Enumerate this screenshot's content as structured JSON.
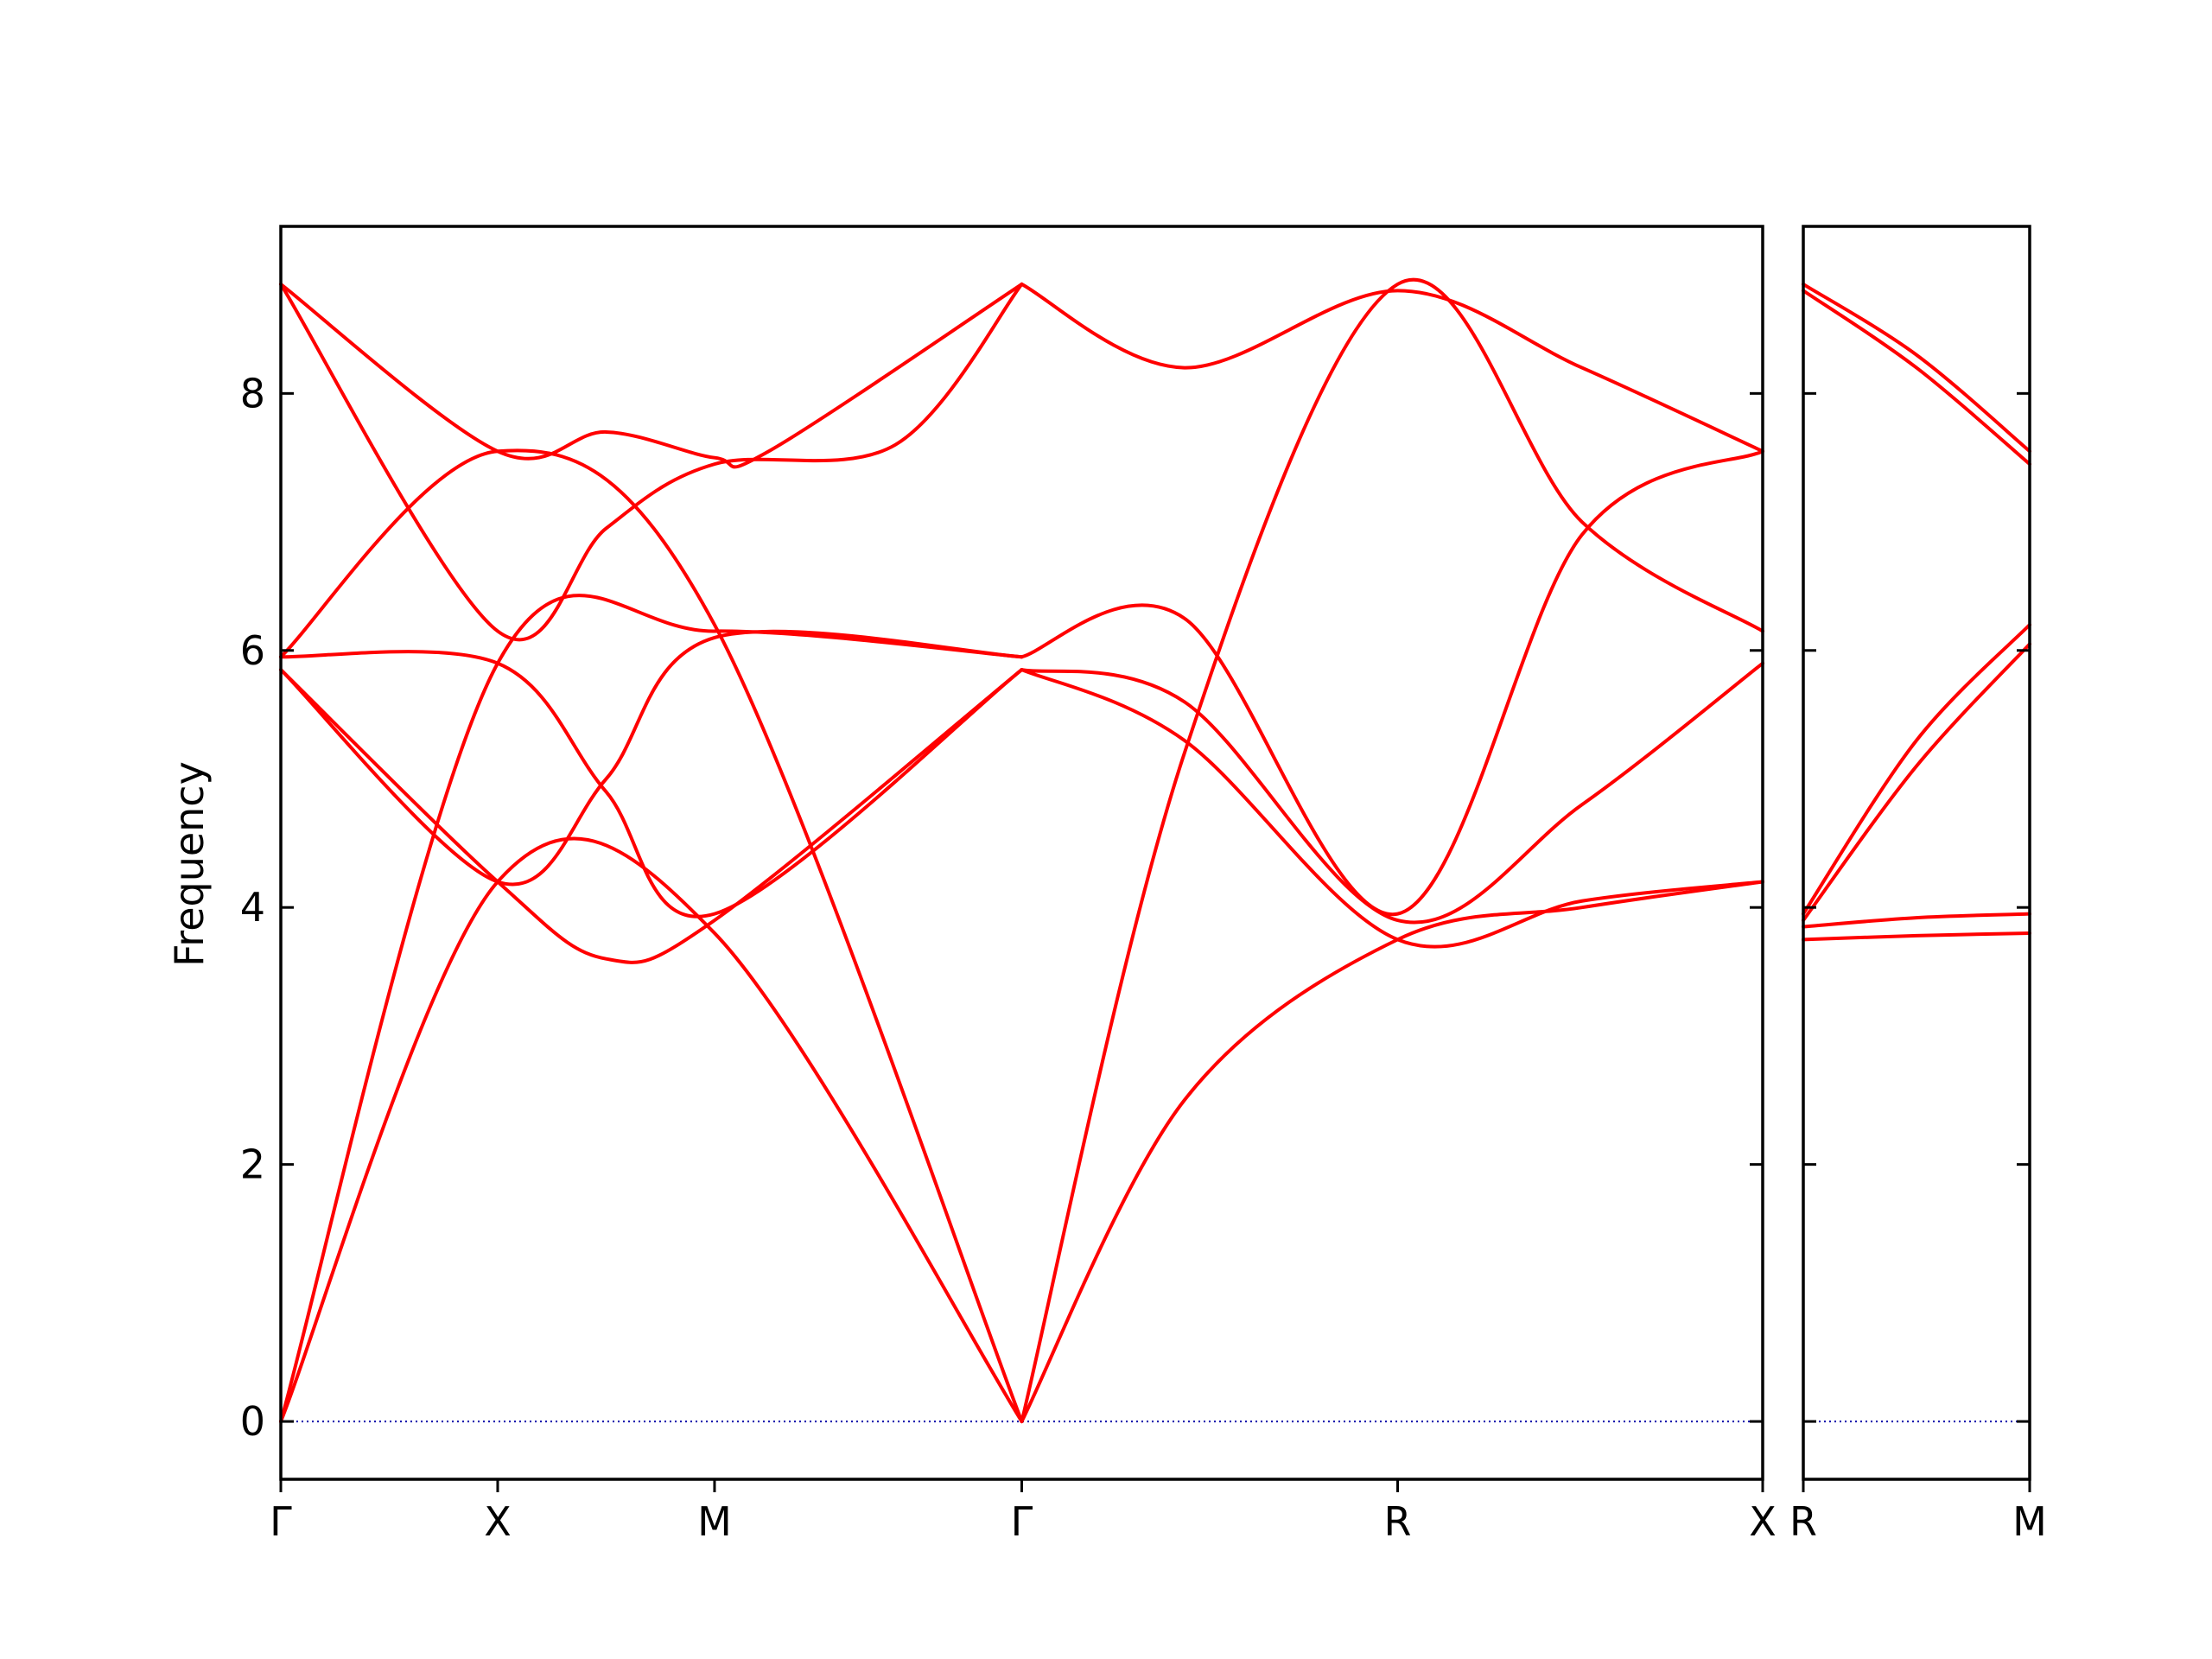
{
  "chart_data": {
    "type": "line",
    "title": "",
    "ylabel": "Frequency",
    "ylim": [
      -0.45,
      9.3
    ],
    "yticks": [
      0,
      2,
      4,
      6,
      8
    ],
    "line_color": "#ff0000",
    "zero_line_color": "#0000aa",
    "panels": [
      {
        "name": "main",
        "x_range": [
          0,
          4.1
        ],
        "xticks": [
          {
            "x": 0,
            "label": "Γ"
          },
          {
            "x": 0.6,
            "label": "X"
          },
          {
            "x": 1.2,
            "label": "M"
          },
          {
            "x": 2.05,
            "label": "Γ"
          },
          {
            "x": 3.09,
            "label": "R"
          },
          {
            "x": 4.1,
            "label": "X"
          }
        ],
        "series": [
          {
            "points": [
              [
                0,
                0
              ],
              [
                0.6,
                4.2
              ],
              [
                1.2,
                3.8
              ],
              [
                2.05,
                0
              ]
            ]
          },
          {
            "points": [
              [
                0,
                0
              ],
              [
                0.6,
                5.9
              ],
              [
                1.2,
                6.15
              ],
              [
                2.05,
                5.95
              ]
            ]
          },
          {
            "points": [
              [
                0,
                5.85
              ],
              [
                0.6,
                4.2
              ],
              [
                0.9,
                3.6
              ],
              [
                1.2,
                3.9
              ],
              [
                2.05,
                5.85
              ]
            ]
          },
          {
            "points": [
              [
                0,
                5.85
              ],
              [
                0.6,
                4.2
              ],
              [
                0.9,
                5.0
              ],
              [
                1.2,
                6.1
              ],
              [
                2.05,
                5.95
              ]
            ]
          },
          {
            "points": [
              [
                0,
                5.95
              ],
              [
                0.6,
                7.55
              ],
              [
                1.2,
                6.2
              ],
              [
                2.05,
                0
              ]
            ]
          },
          {
            "points": [
              [
                0,
                5.95
              ],
              [
                0.6,
                5.9
              ],
              [
                0.9,
                4.9
              ],
              [
                1.2,
                3.95
              ],
              [
                2.05,
                5.85
              ]
            ]
          },
          {
            "points": [
              [
                0,
                8.85
              ],
              [
                0.6,
                6.15
              ],
              [
                0.9,
                6.95
              ],
              [
                1.2,
                7.45
              ],
              [
                1.7,
                7.6
              ],
              [
                2.05,
                8.85
              ]
            ]
          },
          {
            "points": [
              [
                0,
                8.85
              ],
              [
                0.6,
                7.55
              ],
              [
                0.9,
                7.7
              ],
              [
                1.2,
                7.5
              ],
              [
                1.35,
                7.55
              ],
              [
                2.05,
                8.85
              ]
            ]
          },
          {
            "points": [
              [
                2.05,
                0
              ],
              [
                2.5,
                2.5
              ],
              [
                3.09,
                3.75
              ],
              [
                3.6,
                4.0
              ],
              [
                4.1,
                4.2
              ]
            ]
          },
          {
            "points": [
              [
                2.05,
                0
              ],
              [
                2.5,
                5.2
              ],
              [
                3.09,
                8.85
              ],
              [
                3.6,
                7.0
              ],
              [
                4.1,
                6.15
              ]
            ]
          },
          {
            "points": [
              [
                2.05,
                5.85
              ],
              [
                2.5,
                5.3
              ],
              [
                3.09,
                3.75
              ],
              [
                3.6,
                4.05
              ],
              [
                4.1,
                4.2
              ]
            ]
          },
          {
            "points": [
              [
                2.05,
                5.85
              ],
              [
                2.5,
                5.6
              ],
              [
                3.09,
                3.9
              ],
              [
                3.6,
                4.8
              ],
              [
                4.1,
                5.9
              ]
            ]
          },
          {
            "points": [
              [
                2.05,
                5.95
              ],
              [
                2.5,
                6.25
              ],
              [
                3.09,
                3.95
              ],
              [
                3.6,
                6.9
              ],
              [
                4.1,
                7.55
              ]
            ]
          },
          {
            "points": [
              [
                2.05,
                8.85
              ],
              [
                2.5,
                8.2
              ],
              [
                3.09,
                8.8
              ],
              [
                3.6,
                8.2
              ],
              [
                4.1,
                7.55
              ]
            ]
          }
        ]
      },
      {
        "name": "right",
        "x_range": [
          0,
          0.6
        ],
        "xticks": [
          {
            "x": 0,
            "label": "R"
          },
          {
            "x": 0.6,
            "label": "M"
          }
        ],
        "series": [
          {
            "points": [
              [
                0,
                8.85
              ],
              [
                0.3,
                8.3
              ],
              [
                0.6,
                7.55
              ]
            ]
          },
          {
            "points": [
              [
                0,
                8.8
              ],
              [
                0.3,
                8.2
              ],
              [
                0.6,
                7.45
              ]
            ]
          },
          {
            "points": [
              [
                0,
                3.95
              ],
              [
                0.3,
                5.3
              ],
              [
                0.6,
                6.2
              ]
            ]
          },
          {
            "points": [
              [
                0,
                3.9
              ],
              [
                0.3,
                5.1
              ],
              [
                0.6,
                6.05
              ]
            ]
          },
          {
            "points": [
              [
                0,
                3.75
              ],
              [
                0.3,
                3.78
              ],
              [
                0.6,
                3.8
              ]
            ]
          },
          {
            "points": [
              [
                0,
                3.85
              ],
              [
                0.3,
                3.92
              ],
              [
                0.6,
                3.95
              ]
            ]
          }
        ]
      }
    ]
  }
}
